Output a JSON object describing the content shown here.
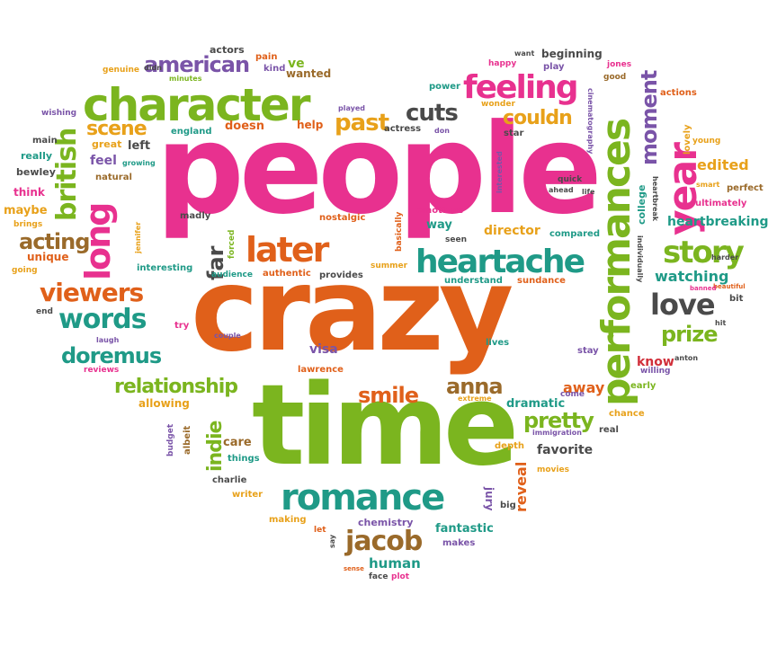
{
  "colors": {
    "pink": "#e8318f",
    "orange": "#e0601a",
    "green": "#7bb51f",
    "teal": "#1f9a87",
    "purple": "#7a54a8",
    "gold": "#e8a11a",
    "gray": "#4a4a4a",
    "brown": "#9a6a2a",
    "red": "#d12f3a"
  },
  "words": [
    "people",
    "crazy",
    "time",
    "character",
    "performances",
    "romance",
    "heartache",
    "feeling",
    "later",
    "story",
    "year",
    "long",
    "british",
    "jacob",
    "words",
    "love",
    "viewers",
    "relationship",
    "doremus",
    "american",
    "smile",
    "moment",
    "acting",
    "anna",
    "pretty",
    "cuts",
    "past",
    "couldn",
    "prize",
    "scene",
    "indie",
    "edited",
    "heartbreaking",
    "watching",
    "far",
    "away",
    "reveal",
    "know",
    "director",
    "chemistry",
    "human",
    "fantastic",
    "dramatic",
    "actors",
    "pain",
    "kind",
    "ve",
    "wanted",
    "genuine",
    "didn",
    "minutes",
    "wishing",
    "main",
    "really",
    "bewley",
    "think",
    "maybe",
    "brings",
    "going",
    "end",
    "laugh",
    "reviews",
    "allowing",
    "budget",
    "albeit",
    "care",
    "things",
    "charlie",
    "writer",
    "making",
    "let",
    "say",
    "sense",
    "face",
    "plot",
    "makes",
    "big",
    "jury",
    "depth",
    "movies",
    "favorite",
    "real",
    "chance",
    "immigration",
    "come",
    "extreme",
    "lives",
    "stay",
    "visa",
    "lawrence",
    "couple",
    "try",
    "audience",
    "authentic",
    "provides",
    "summer",
    "understand",
    "sundance",
    "seen",
    "way",
    "emotions",
    "basically",
    "nostalgic",
    "forced",
    "jennifer",
    "madly",
    "interesting",
    "unique",
    "natural",
    "growing",
    "feel",
    "great",
    "left",
    "england",
    "doesn",
    "help",
    "played",
    "actress",
    "don",
    "star",
    "interested",
    "quick",
    "ahead",
    "life",
    "cinematography",
    "wonder",
    "power",
    "happy",
    "want",
    "beginning",
    "play",
    "jones",
    "good",
    "actions",
    "lovely",
    "young",
    "smart",
    "perfect",
    "ultimately",
    "harder",
    "beautiful",
    "banned",
    "bit",
    "hit",
    "anton",
    "willing",
    "early",
    "college",
    "heartbreak",
    "individually",
    "compared"
  ]
}
